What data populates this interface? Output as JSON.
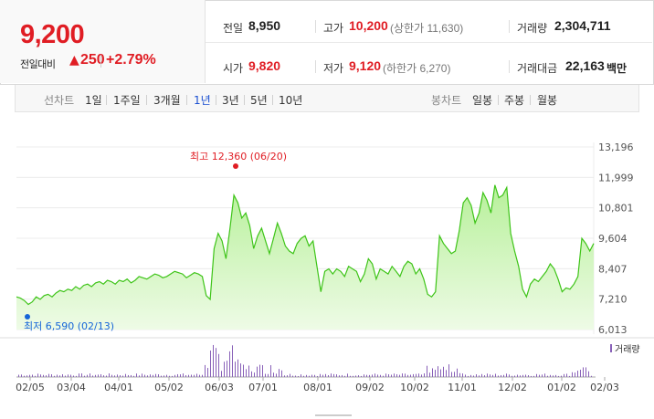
{
  "summary": {
    "price": "9,200",
    "change_label": "전일대비",
    "change_arrow": "▲",
    "change_value": "250",
    "change_pct": "+2.79%"
  },
  "stats": {
    "prev_close_label": "전일",
    "prev_close": "8,950",
    "high_label": "고가",
    "high": "10,200",
    "upper_limit": "(상한가 11,630)",
    "volume_label": "거래량",
    "volume": "2,304,711",
    "open_label": "시가",
    "open": "9,820",
    "low_label": "저가",
    "low": "9,120",
    "lower_limit": "(하한가 6,270)",
    "value_label": "거래대금",
    "value": "22,163",
    "value_unit": "백만"
  },
  "period_bar": {
    "line_title": "선차트",
    "line_periods": [
      "1일",
      "1주일",
      "3개월",
      "1년",
      "3년",
      "5년",
      "10년"
    ],
    "line_active": "1년",
    "candle_title": "봉차트",
    "candle_periods": [
      "일봉",
      "주봉",
      "월봉"
    ]
  },
  "colors": {
    "up": "#e01d24",
    "line": "#3ec418",
    "fill_top": "#b7f09a",
    "fill_bottom": "#eefbe6",
    "low_marker": "#1565d8",
    "volume": "#8860b8",
    "active_period": "#1a4fd1"
  },
  "chart_data": {
    "type": "area",
    "y_ticks": [
      "13,196",
      "11,999",
      "10,801",
      "9,604",
      "8,407",
      "7,210",
      "6,013"
    ],
    "ylim": [
      6013,
      13196
    ],
    "x_ticks": [
      "02/05",
      "03/04",
      "04/01",
      "05/02",
      "06/03",
      "07/01",
      "08/01",
      "09/02",
      "10/02",
      "11/01",
      "12/02",
      "01/02",
      "02/03"
    ],
    "high_annotation": "최고 12,360 (06/20)",
    "low_annotation": "최저 6,590 (02/13)",
    "volume_legend": "거래량",
    "series": [
      {
        "values": [
          7300,
          7250,
          7150,
          7000,
          7100,
          7300,
          7200,
          7350,
          7400,
          7300,
          7450,
          7550,
          7500,
          7600,
          7550,
          7700,
          7600,
          7750,
          7800,
          7700,
          7850,
          7900,
          7800,
          7950,
          7900,
          7800,
          7950,
          7900,
          8000,
          7850,
          7950,
          8100,
          8050,
          8000,
          8100,
          8200,
          8150,
          8050,
          8100,
          8200,
          8300,
          8250,
          8200,
          8050,
          8150,
          8250,
          8200,
          8100,
          7350,
          7200,
          9200,
          9800,
          9500,
          8800,
          10000,
          11300,
          11000,
          10400,
          10600,
          10100,
          9200,
          9700,
          10000,
          9500,
          9000,
          9600,
          10200,
          9800,
          9300,
          9100,
          9000,
          9400,
          9600,
          9700,
          9300,
          9500,
          8500,
          7500,
          8300,
          8400,
          8200,
          8400,
          8300,
          8100,
          8500,
          8400,
          8300,
          7900,
          8200,
          8800,
          8600,
          8000,
          8400,
          8300,
          8200,
          8500,
          8300,
          8100,
          8500,
          8700,
          8600,
          8200,
          8400,
          8000,
          7400,
          7300,
          7500,
          9700,
          9400,
          9200,
          9000,
          9100,
          9900,
          11000,
          11200,
          10900,
          10200,
          10600,
          11400,
          11100,
          10600,
          11700,
          11200,
          11300,
          11600,
          9800,
          9100,
          8500,
          7600,
          7300,
          7800,
          8000,
          7900,
          8100,
          8300,
          8600,
          8400,
          8000,
          7500,
          7650,
          7600,
          7800,
          8100,
          9600,
          9400,
          9100,
          9400
        ]
      }
    ]
  }
}
